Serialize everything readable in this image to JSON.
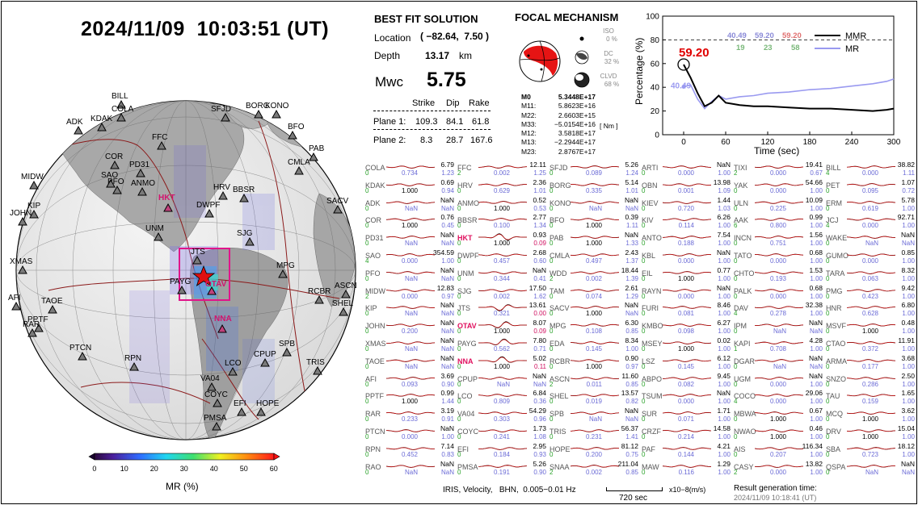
{
  "header": {
    "datetime": "2024/11/09  10:03:51 (UT)"
  },
  "map": {
    "colorbar": {
      "title": "MR (%)",
      "ticks": [
        "0",
        "10",
        "20",
        "30",
        "40",
        "50",
        "60"
      ]
    },
    "stations": [
      {
        "code": "BILL",
        "hl": false
      },
      {
        "code": "COLA",
        "hl": false
      },
      {
        "code": "ADK",
        "hl": false
      },
      {
        "code": "KDAK",
        "hl": false
      },
      {
        "code": "SFJD",
        "hl": false
      },
      {
        "code": "BORG",
        "hl": false
      },
      {
        "code": "KONO",
        "hl": false
      },
      {
        "code": "BFO",
        "hl": false
      },
      {
        "code": "FFC",
        "hl": false
      },
      {
        "code": "COR",
        "hl": false
      },
      {
        "code": "PD31",
        "hl": false
      },
      {
        "code": "SAO",
        "hl": false
      },
      {
        "code": "PFO",
        "hl": false
      },
      {
        "code": "ANMO",
        "hl": false
      },
      {
        "code": "HRV",
        "hl": false
      },
      {
        "code": "PAB",
        "hl": false
      },
      {
        "code": "CMLA",
        "hl": false
      },
      {
        "code": "MIDW",
        "hl": false
      },
      {
        "code": "KIP",
        "hl": false
      },
      {
        "code": "JOHN",
        "hl": false
      },
      {
        "code": "HKT",
        "hl": true
      },
      {
        "code": "BBSR",
        "hl": false
      },
      {
        "code": "DWPF",
        "hl": false
      },
      {
        "code": "SACV",
        "hl": false
      },
      {
        "code": "UNM",
        "hl": false
      },
      {
        "code": "SJG",
        "hl": false
      },
      {
        "code": "XMAS",
        "hl": false
      },
      {
        "code": "JTS",
        "hl": false
      },
      {
        "code": "MPG",
        "hl": false
      },
      {
        "code": "PAYG",
        "hl": false
      },
      {
        "code": "OTAV",
        "hl": true
      },
      {
        "code": "ASCN",
        "hl": false
      },
      {
        "code": "SHEL",
        "hl": false
      },
      {
        "code": "RCBR",
        "hl": false
      },
      {
        "code": "AFI",
        "hl": false
      },
      {
        "code": "TAOE",
        "hl": false
      },
      {
        "code": "PPTF",
        "hl": false
      },
      {
        "code": "RAR",
        "hl": false
      },
      {
        "code": "NNA",
        "hl": true
      },
      {
        "code": "PTCN",
        "hl": false
      },
      {
        "code": "RPN",
        "hl": false
      },
      {
        "code": "SPB",
        "hl": false
      },
      {
        "code": "CPUP",
        "hl": false
      },
      {
        "code": "LCO",
        "hl": false
      },
      {
        "code": "TRIS",
        "hl": false
      },
      {
        "code": "VA04",
        "hl": false
      },
      {
        "code": "COYC",
        "hl": false
      },
      {
        "code": "EFI",
        "hl": false
      },
      {
        "code": "HOPE",
        "hl": false
      },
      {
        "code": "PMSA",
        "hl": false
      }
    ]
  },
  "solution": {
    "title": "BEST FIT SOLUTION",
    "location_label": "Location",
    "location_value": "( −82.64,  7.50 )",
    "depth_label": "Depth",
    "depth_value": "13.17",
    "depth_unit": "km",
    "mwc_label": "Mwc",
    "mwc_value": "5.75",
    "plane_headers": [
      "Strike",
      "Dip",
      "Rake"
    ],
    "plane1_label": "Plane 1:",
    "plane1": [
      "109.3",
      "84.1",
      "61.8"
    ],
    "plane2_label": "Plane 2:",
    "plane2": [
      "8.3",
      "28.7",
      "167.6"
    ]
  },
  "focal": {
    "title": "FOCAL MECHANISM",
    "iso_label": "ISO",
    "iso_value": "0 %",
    "dc_label": "DC",
    "dc_value": "32 %",
    "clvd_label": "CLVD",
    "clvd_value": "68 %",
    "moments": [
      {
        "k": "M0",
        "v": "5.3448E+17"
      },
      {
        "k": "M11:",
        "v": "5.8623E+16"
      },
      {
        "k": "M22:",
        "v": "2.6603E+15"
      },
      {
        "k": "M33:",
        "v": "−5.0154E+16"
      },
      {
        "k": "M12:",
        "v": "3.5818E+17"
      },
      {
        "k": "M13:",
        "v": "−2.2944E+17"
      },
      {
        "k": "M23:",
        "v": "2.8767E+17"
      }
    ],
    "moment_unit": "[ Nm ]"
  },
  "mr_plot": {
    "ylabel": "Percentage (%)",
    "xlabel": "Time (sec)",
    "y_ticks": [
      "0",
      "20",
      "40",
      "60",
      "80",
      "100"
    ],
    "x_ticks": [
      "0",
      "60",
      "120",
      "180",
      "240",
      "300"
    ],
    "legend_mmr": "MMR",
    "legend_mr": "MR",
    "peak_value": "59.20",
    "mr_start_value": "40.49",
    "stats_top": [
      "40.49",
      "59.20",
      "59.20"
    ],
    "stats_bottom": [
      "19",
      "23",
      "58"
    ],
    "colors": {
      "mmr": "#000000",
      "mr": "#9a9af0",
      "peak": "#e00000"
    }
  },
  "chart_data": {
    "type": "line",
    "xlabel": "Time (sec)",
    "ylabel": "Percentage (%)",
    "xlim": [
      -30,
      300
    ],
    "ylim": [
      0,
      100
    ],
    "series": [
      {
        "name": "MMR",
        "x": [
          0,
          10,
          20,
          30,
          40,
          50,
          60,
          80,
          100,
          120,
          150,
          180,
          210,
          240,
          270,
          290,
          300
        ],
        "values": [
          59.2,
          48,
          35,
          24,
          27,
          33,
          27,
          25,
          24,
          24,
          23,
          22,
          22,
          21,
          20,
          21,
          22
        ]
      },
      {
        "name": "MR",
        "x": [
          0,
          10,
          20,
          30,
          40,
          50,
          60,
          80,
          100,
          120,
          150,
          180,
          210,
          240,
          270,
          290,
          300
        ],
        "values": [
          40.49,
          42,
          30,
          22,
          28,
          33,
          30,
          32,
          33,
          35,
          36,
          38,
          39,
          41,
          43,
          45,
          47
        ]
      }
    ]
  },
  "waveforms": [
    [
      [
        "COLA",
        "6.79",
        "0",
        "0.734",
        "1.23"
      ],
      [
        "KDAK",
        "0.69",
        "0",
        "1.000",
        "0.94"
      ],
      [
        "ADK",
        "NaN",
        "0",
        "NaN",
        "NaN"
      ],
      [
        "COR",
        "0.76",
        "0",
        "1.000",
        "0.45"
      ],
      [
        "PD31",
        "NaN",
        "0",
        "NaN",
        "NaN"
      ],
      [
        "SAO",
        "354.59",
        "4",
        "0.000",
        "1.00"
      ],
      [
        "PFO",
        "NaN",
        "0",
        "NaN",
        "NaN"
      ],
      [
        "MIDW",
        "12.83",
        "2",
        "0.000",
        "0.97"
      ],
      [
        "KIP",
        "NaN",
        "0",
        "NaN",
        "NaN"
      ],
      [
        "JOHN",
        "NaN",
        "0",
        "0.200",
        "NaN"
      ],
      [
        "XMAS",
        "NaN",
        "0",
        "NaN",
        "NaN"
      ],
      [
        "TAOE",
        "NaN",
        "0",
        "NaN",
        "NaN"
      ],
      [
        "AFI",
        "3.69",
        "0",
        "0.093",
        "0.90"
      ],
      [
        "PPTF",
        "0.99",
        "0",
        "1.000",
        "1.44"
      ],
      [
        "RAR",
        "3.19",
        "0",
        "0.233",
        "0.91"
      ],
      [
        "PTCN",
        "NaN",
        "0",
        "0.000",
        "1.00"
      ],
      [
        "RPN",
        "7.14",
        "0",
        "0.452",
        "0.83"
      ],
      [
        "RAO",
        "NaN",
        "0",
        "NaN",
        "NaN"
      ]
    ],
    [
      [
        "FFC",
        "12.11",
        "2",
        "0.002",
        "1.25"
      ],
      [
        "HRV",
        "2.36",
        "0",
        "0.629",
        "1.01"
      ],
      [
        "ANMO",
        "0.52",
        "0",
        "1.000",
        "0.53"
      ],
      [
        "BBSR",
        "2.77",
        "0",
        "0.100",
        "1.34"
      ],
      [
        "HKT",
        "0.93",
        "0",
        "1.000",
        "0.09"
      ],
      [
        "DWPF",
        "2.68",
        "0",
        "0.457",
        "0.60"
      ],
      [
        "UNM",
        "NaN",
        "0",
        "0.344",
        "0.41"
      ],
      [
        "SJG",
        "17.50",
        "0",
        "0.002",
        "1.62"
      ],
      [
        "JTS",
        "13.61",
        "0",
        "0.321",
        "0.00"
      ],
      [
        "OTAV",
        "8.07",
        "0",
        "1.000",
        "0.09"
      ],
      [
        "PAYG",
        "7.80",
        "0",
        "0.562",
        "0.71"
      ],
      [
        "NNA",
        "5.02",
        "0",
        "1.000",
        "0.11"
      ],
      [
        "CPUP",
        "NaN",
        "0",
        "NaN",
        "NaN"
      ],
      [
        "LCO",
        "6.84",
        "0",
        "0.809",
        "0.36"
      ],
      [
        "VA04",
        "54.29",
        "0",
        "0.303",
        "0.96"
      ],
      [
        "COYC",
        "1.73",
        "0",
        "0.241",
        "1.08"
      ],
      [
        "EFI",
        "2.95",
        "0",
        "0.184",
        "0.93"
      ],
      [
        "PMSA",
        "5.26",
        "0",
        "0.191",
        "0.90"
      ]
    ],
    [
      [
        "SFJD",
        "5.26",
        "0",
        "0.089",
        "1.24"
      ],
      [
        "BORG",
        "5.14",
        "0",
        "0.335",
        "1.01"
      ],
      [
        "KONO",
        "NaN",
        "0",
        "NaN",
        "NaN"
      ],
      [
        "BFO",
        "0.39",
        "0",
        "1.000",
        "1.11"
      ],
      [
        "PAB",
        "NaN",
        "0",
        "1.000",
        "1.33"
      ],
      [
        "CMLA",
        "2.43",
        "0",
        "0.497",
        "1.37"
      ],
      [
        "WDD",
        "18.44",
        "2",
        "0.002",
        "1.39"
      ],
      [
        "TAM",
        "2.61",
        "0",
        "0.074",
        "1.29"
      ],
      [
        "SACV",
        "NaN",
        "0",
        "1.000",
        "NaN"
      ],
      [
        "MPG",
        "6.30",
        "0",
        "0.108",
        "0.85"
      ],
      [
        "EDA",
        "8.34",
        "0",
        "0.145",
        "1.00"
      ],
      [
        "RCBR",
        "0.90",
        "0",
        "1.000",
        "0.97"
      ],
      [
        "ASCN",
        "11.60",
        "2",
        "0.011",
        "0.85"
      ],
      [
        "SHEL",
        "13.57",
        "0",
        "0.019",
        "0.82"
      ],
      [
        "SPB",
        "NaN",
        "0",
        "NaN",
        "NaN"
      ],
      [
        "TRIS",
        "56.37",
        "0",
        "0.231",
        "1.41"
      ],
      [
        "HOPE",
        "81.12",
        "0",
        "0.200",
        "0.75"
      ],
      [
        "SNAA",
        "211.04",
        "2",
        "0.002",
        "0.85"
      ]
    ],
    [
      [
        "ARTI",
        "NaN",
        "0",
        "0.000",
        "1.00"
      ],
      [
        "OBN",
        "13.98",
        "0",
        "0.001",
        "1.09"
      ],
      [
        "KIEV",
        "1.44",
        "0",
        "0.720",
        "1.03"
      ],
      [
        "KIV",
        "6.26",
        "0",
        "0.114",
        "1.00"
      ],
      [
        "ANTO",
        "7.54",
        "0",
        "0.188",
        "1.00"
      ],
      [
        "KBL",
        "NaN",
        "0",
        "0.000",
        "1.00"
      ],
      [
        "EIL",
        "0.77",
        "0",
        "1.000",
        "1.00"
      ],
      [
        "RAYN",
        "NaN",
        "0",
        "0.000",
        "1.00"
      ],
      [
        "FURI",
        "8.46",
        "0",
        "0.081",
        "1.00"
      ],
      [
        "KMBO",
        "6.27",
        "0",
        "0.098",
        "1.00"
      ],
      [
        "MSEY",
        "0.02",
        "0",
        "1.000",
        "1.00"
      ],
      [
        "LSZ",
        "6.12",
        "0",
        "0.145",
        "1.00"
      ],
      [
        "ABPO",
        "9.45",
        "0",
        "0.082",
        "1.00"
      ],
      [
        "TSUM",
        "NaN",
        "0",
        "0.000",
        "1.00"
      ],
      [
        "SUR",
        "1.71",
        "0",
        "0.071",
        "1.00"
      ],
      [
        "CRZF",
        "14.58",
        "0",
        "0.214",
        "1.00"
      ],
      [
        "PAF",
        "4.21",
        "0",
        "0.144",
        "1.00"
      ],
      [
        "MAW",
        "1.29",
        "0",
        "0.116",
        "1.00"
      ]
    ],
    [
      [
        "TIXI",
        "19.41",
        "2",
        "0.000",
        "0.67"
      ],
      [
        "YAK",
        "54.66",
        "0",
        "0.000",
        "1.00"
      ],
      [
        "ULN",
        "10.09",
        "0",
        "0.225",
        "1.00"
      ],
      [
        "AAK",
        "0.99",
        "6",
        "0.800",
        "1.00"
      ],
      [
        "INCN",
        "1.56",
        "0",
        "0.751",
        "1.00"
      ],
      [
        "TATO",
        "0.68",
        "0",
        "0.000",
        "1.00"
      ],
      [
        "CHTO",
        "1.53",
        "0",
        "0.193",
        "1.00"
      ],
      [
        "PALK",
        "0.68",
        "0",
        "0.000",
        "1.00"
      ],
      [
        "DAV",
        "32.38",
        "4",
        "0.278",
        "1.00"
      ],
      [
        "IPM",
        "NaN",
        "0",
        "NaN",
        "NaN"
      ],
      [
        "KAPI",
        "4.28",
        "1",
        "0.708",
        "1.00"
      ],
      [
        "DGAR",
        "NaN",
        "0",
        "NaN",
        "NaN"
      ],
      [
        "UGM",
        "NaN",
        "0",
        "0.000",
        "1.00"
      ],
      [
        "COCO",
        "29.06",
        "4",
        "0.000",
        "1.00"
      ],
      [
        "MBWA",
        "0.67",
        "0",
        "1.000",
        "1.00"
      ],
      [
        "NWAO",
        "0.46",
        "0",
        "1.000",
        "1.00"
      ],
      [
        "AIS",
        "116.34",
        "0",
        "0.207",
        "1.00"
      ],
      [
        "CASY",
        "13.82",
        "2",
        "0.000",
        "1.00"
      ]
    ],
    [
      [
        "BILL",
        "38.82",
        "4",
        "0.000",
        "1.11"
      ],
      [
        "PET",
        "1.07",
        "0",
        "0.095",
        "0.72"
      ],
      [
        "ERM",
        "5.78",
        "0",
        "0.619",
        "1.00"
      ],
      [
        "JCJ",
        "92.71",
        "4",
        "0.000",
        "1.00"
      ],
      [
        "WAKE",
        "NaN",
        "0",
        "NaN",
        "NaN"
      ],
      [
        "GUMO",
        "0.85",
        "0",
        "0.000",
        "1.00"
      ],
      [
        "TARA",
        "8.32",
        "0",
        "0.063",
        "1.00"
      ],
      [
        "PMG",
        "9.42",
        "0",
        "0.423",
        "1.00"
      ],
      [
        "HNR",
        "6.80",
        "0",
        "0.628",
        "1.00"
      ],
      [
        "MSVF",
        "0.48",
        "0",
        "1.000",
        "1.00"
      ],
      [
        "CTAO",
        "11.91",
        "0",
        "0.372",
        "1.00"
      ],
      [
        "ARMA",
        "3.68",
        "0",
        "0.177",
        "1.00"
      ],
      [
        "SNZO",
        "2.50",
        "0",
        "0.286",
        "1.00"
      ],
      [
        "TAU",
        "1.65",
        "0",
        "0.159",
        "1.00"
      ],
      [
        "MCQ",
        "3.62",
        "0",
        "1.000",
        "1.00"
      ],
      [
        "DRV",
        "15.04",
        "0",
        "1.000",
        "1.00"
      ],
      [
        "SBA",
        "18.12",
        "0",
        "0.723",
        "1.00"
      ],
      [
        "QSPA",
        "NaN",
        "0",
        "NaN",
        "NaN"
      ]
    ]
  ],
  "footer": {
    "info": "IRIS, Velocity,   BHN,  0.005−0.01 Hz",
    "scale_label": "720 sec",
    "amp_unit": "x10−8(m/s)",
    "gen_label": "Result generation time:",
    "gen_time": "2024/11/09 10:18:41 (UT)"
  }
}
